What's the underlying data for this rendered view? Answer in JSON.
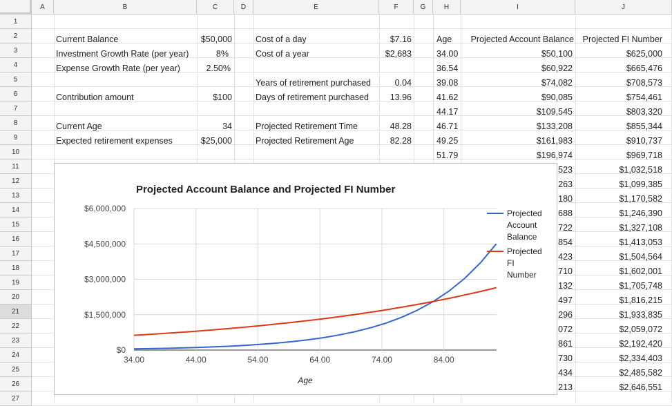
{
  "columns": [
    "A",
    "B",
    "C",
    "D",
    "E",
    "F",
    "G",
    "H",
    "I",
    "J"
  ],
  "rows": [
    "1",
    "2",
    "3",
    "4",
    "5",
    "6",
    "7",
    "8",
    "9",
    "10",
    "11",
    "12",
    "13",
    "14",
    "15",
    "16",
    "17",
    "18",
    "19",
    "20",
    "21",
    "22",
    "23",
    "24",
    "25",
    "26",
    "27"
  ],
  "inputs": {
    "current_balance_label": "Current Balance",
    "current_balance": "$50,000",
    "growth_rate_label": "Investment Growth Rate (per year)",
    "growth_rate": "8%",
    "expense_growth_label": "Expense Growth Rate (per year)",
    "expense_growth": "2.50%",
    "contribution_label": "Contribution amount",
    "contribution": "$100",
    "current_age_label": "Current Age",
    "current_age": "34",
    "retirement_expenses_label": "Expected retirement expenses",
    "retirement_expenses": "$25,000"
  },
  "calc": {
    "cost_day_label": "Cost of a day",
    "cost_day": "$7.16",
    "cost_year_label": "Cost of a year",
    "cost_year": "$2,683",
    "years_purchased_label": "Years of retirement purchased",
    "years_purchased": "0.04",
    "days_purchased_label": "Days of retirement purchased",
    "days_purchased": "13.96",
    "proj_time_label": "Projected Retirement Time",
    "proj_time": "48.28",
    "proj_age_label": "Projected Retirement Age",
    "proj_age": "82.28"
  },
  "table": {
    "headers": [
      "Age",
      "Projected Account Balance",
      "Projected FI Number"
    ],
    "rows": [
      [
        "34.00",
        "$50,100",
        "$625,000"
      ],
      [
        "36.54",
        "$60,922",
        "$665,476"
      ],
      [
        "39.08",
        "$74,082",
        "$708,573"
      ],
      [
        "41.62",
        "$90,085",
        "$754,461"
      ],
      [
        "44.17",
        "$109,545",
        "$803,320"
      ],
      [
        "46.71",
        "$133,208",
        "$855,344"
      ],
      [
        "49.25",
        "$161,983",
        "$910,737"
      ],
      [
        "51.79",
        "$196,974",
        "$969,718"
      ],
      [
        "",
        ",523",
        "$1,032,518"
      ],
      [
        "",
        ",263",
        "$1,099,385"
      ],
      [
        "",
        ",180",
        "$1,170,582"
      ],
      [
        "",
        ",688",
        "$1,246,390"
      ],
      [
        "",
        ",722",
        "$1,327,108"
      ],
      [
        "",
        ",854",
        "$1,413,053"
      ],
      [
        "",
        ",423",
        "$1,504,564"
      ],
      [
        "",
        ",710",
        "$1,602,001"
      ],
      [
        "",
        ",132",
        "$1,705,748"
      ],
      [
        "",
        ",497",
        "$1,816,215"
      ],
      [
        "",
        ",296",
        "$1,933,835"
      ],
      [
        "",
        ",072",
        "$2,059,072"
      ],
      [
        "",
        ",861",
        "$2,192,420"
      ],
      [
        "",
        ",730",
        "$2,334,403"
      ],
      [
        "",
        ",434",
        "$2,485,582"
      ],
      [
        "",
        ",213",
        "$2,646,551"
      ]
    ]
  },
  "chart_data": {
    "type": "line",
    "title": "Projected Account Balance and Projected FI Number",
    "xlabel": "Age",
    "ylabel": "",
    "xlim": [
      34,
      92.5
    ],
    "ylim": [
      0,
      6000000
    ],
    "x_ticks": [
      "34.00",
      "44.00",
      "54.00",
      "64.00",
      "74.00",
      "84.00"
    ],
    "y_ticks": [
      "$0",
      "$1,500,000",
      "$3,000,000",
      "$4,500,000",
      "$6,000,000"
    ],
    "grid": true,
    "legend_position": "right",
    "x": [
      34.0,
      36.54,
      39.08,
      41.62,
      44.17,
      46.71,
      49.25,
      51.79,
      54.33,
      56.87,
      59.42,
      61.96,
      64.5,
      67.04,
      69.58,
      72.12,
      74.67,
      77.21,
      79.75,
      82.29,
      84.83,
      87.37,
      89.92,
      92.46
    ],
    "series": [
      {
        "name": "Projected Account Balance",
        "color": "#3366cc",
        "values": [
          50100,
          60922,
          74082,
          90085,
          109545,
          133208,
          161983,
          196974,
          239523,
          291263,
          354180,
          430688,
          523722,
          636854,
          774423,
          941710,
          1145132,
          1392497,
          1693296,
          2059072,
          2503861,
          3044730,
          3702434,
          4502213
        ]
      },
      {
        "name": "Projected FI Number",
        "color": "#dc3912",
        "values": [
          625000,
          665476,
          708573,
          754461,
          803320,
          855344,
          910737,
          969718,
          1032518,
          1099385,
          1170582,
          1246390,
          1327108,
          1413053,
          1504564,
          1602001,
          1705748,
          1816215,
          1933835,
          2059072,
          2192420,
          2334403,
          2485582,
          2646551
        ]
      }
    ]
  }
}
